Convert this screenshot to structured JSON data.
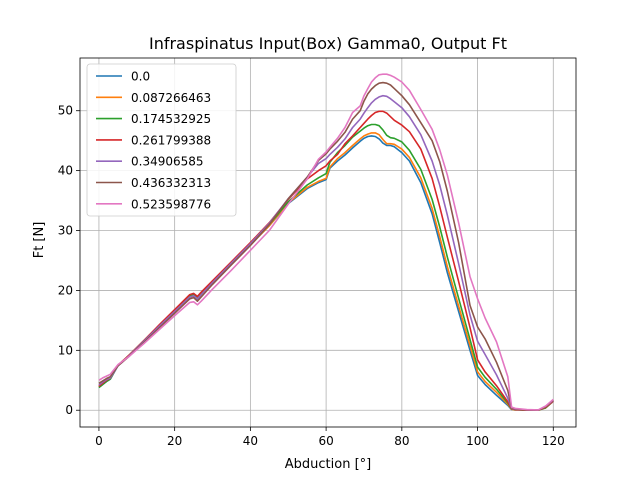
{
  "chart_data": {
    "type": "line",
    "title": "Infraspinatus Input(Box) Gamma0, Output Ft",
    "xlabel": "Abduction [°]",
    "ylabel": "Ft [N]",
    "xlim": [
      -5,
      126
    ],
    "ylim": [
      -2.8,
      58.8
    ],
    "xticks": [
      0,
      20,
      40,
      60,
      80,
      100,
      120
    ],
    "yticks": [
      0,
      10,
      20,
      30,
      40,
      50
    ],
    "grid": true,
    "legend_position": "top-left",
    "x": [
      0,
      1,
      2,
      3,
      5,
      8,
      12,
      16,
      20,
      24,
      25,
      26,
      27,
      30,
      35,
      40,
      45,
      50,
      55,
      58,
      60,
      61,
      63,
      65,
      67,
      69,
      70,
      71,
      72,
      73,
      74,
      75,
      76,
      77,
      78,
      80,
      82,
      85,
      88,
      90,
      92,
      95,
      98,
      100,
      102,
      105,
      108,
      109,
      110,
      113,
      116,
      118,
      120
    ],
    "series": [
      {
        "name": "0.0",
        "color": "#1f77b4",
        "values": [
          3.8,
          4.3,
          4.8,
          5.2,
          7.4,
          9.1,
          11.6,
          14.1,
          16.5,
          18.9,
          19.1,
          18.5,
          19.3,
          21.2,
          24.4,
          27.6,
          30.8,
          34.5,
          37.0,
          38.0,
          38.5,
          40.4,
          41.6,
          42.6,
          43.8,
          44.9,
          45.4,
          45.7,
          45.8,
          45.7,
          45.3,
          44.6,
          44.2,
          44.2,
          44.0,
          43.0,
          41.6,
          38.0,
          32.8,
          28.0,
          23.0,
          16.5,
          10.0,
          5.8,
          4.3,
          2.5,
          0.8,
          0.1,
          0.05,
          0.0,
          0.0,
          0.4,
          1.5
        ]
      },
      {
        "name": "0.087266463",
        "color": "#ff7f0e",
        "values": [
          3.9,
          4.4,
          4.9,
          5.3,
          7.5,
          9.2,
          11.6,
          14.1,
          16.5,
          18.9,
          19.1,
          18.6,
          19.3,
          21.2,
          24.4,
          27.6,
          30.8,
          34.6,
          37.2,
          38.2,
          38.7,
          40.6,
          42.0,
          43.0,
          44.2,
          45.3,
          45.8,
          46.1,
          46.3,
          46.3,
          46.0,
          45.2,
          44.5,
          44.5,
          44.4,
          43.6,
          42.2,
          38.8,
          33.7,
          29.0,
          24.0,
          17.4,
          10.8,
          6.4,
          4.8,
          3.0,
          1.0,
          0.15,
          0.05,
          0.0,
          0.0,
          0.4,
          1.5
        ]
      },
      {
        "name": "0.174532925",
        "color": "#2ca02c",
        "values": [
          3.8,
          4.3,
          4.8,
          5.2,
          7.5,
          9.2,
          11.7,
          14.2,
          16.7,
          19.1,
          19.3,
          18.8,
          19.5,
          21.4,
          24.6,
          27.8,
          31.0,
          34.8,
          37.6,
          38.8,
          39.5,
          41.4,
          43.0,
          44.2,
          45.6,
          46.6,
          47.1,
          47.5,
          47.7,
          47.7,
          47.5,
          46.8,
          45.9,
          45.5,
          45.4,
          44.8,
          43.4,
          40.2,
          35.2,
          30.6,
          25.6,
          18.7,
          11.8,
          7.2,
          5.5,
          3.5,
          1.2,
          0.2,
          0.1,
          0.0,
          0.0,
          0.4,
          1.5
        ]
      },
      {
        "name": "0.261799388",
        "color": "#d62728",
        "values": [
          4.0,
          4.5,
          5.0,
          5.4,
          7.5,
          9.2,
          11.7,
          14.3,
          16.8,
          19.3,
          19.5,
          19.0,
          19.7,
          21.6,
          24.8,
          28.0,
          31.3,
          35.2,
          38.6,
          40.0,
          40.8,
          41.6,
          42.7,
          44.5,
          45.8,
          47.2,
          47.9,
          48.6,
          49.2,
          49.7,
          49.9,
          49.9,
          49.6,
          49.0,
          48.4,
          47.6,
          46.5,
          43.6,
          38.7,
          34.0,
          28.9,
          21.5,
          13.8,
          8.4,
          6.4,
          4.1,
          1.4,
          0.25,
          0.1,
          0.0,
          0.0,
          0.5,
          1.5
        ]
      },
      {
        "name": "0.34906585",
        "color": "#9467bd",
        "values": [
          4.2,
          4.7,
          5.1,
          5.4,
          7.4,
          9.1,
          11.6,
          14.1,
          16.5,
          18.9,
          19.1,
          18.6,
          19.3,
          21.3,
          24.6,
          27.8,
          31.2,
          35.3,
          38.9,
          41.2,
          42.0,
          42.7,
          43.9,
          45.3,
          47.2,
          48.6,
          49.6,
          50.5,
          51.3,
          51.9,
          52.3,
          52.5,
          52.4,
          52.0,
          51.5,
          50.5,
          49.0,
          46.0,
          41.6,
          37.6,
          32.6,
          24.5,
          15.9,
          11.5,
          9.3,
          5.9,
          2.0,
          0.3,
          0.15,
          0.05,
          0.0,
          0.6,
          1.6
        ]
      },
      {
        "name": "0.436332313",
        "color": "#8c564b",
        "values": [
          4.5,
          4.9,
          5.3,
          5.6,
          7.4,
          9.0,
          11.4,
          13.8,
          16.2,
          18.6,
          18.8,
          18.2,
          18.9,
          21.0,
          24.3,
          27.5,
          31.0,
          35.3,
          38.9,
          41.7,
          42.8,
          43.6,
          44.9,
          46.4,
          48.6,
          50.0,
          51.6,
          52.8,
          53.6,
          54.2,
          54.6,
          54.7,
          54.6,
          54.3,
          53.7,
          52.5,
          51.0,
          48.0,
          45.0,
          41.5,
          36.6,
          28.0,
          17.5,
          13.9,
          11.9,
          8.0,
          3.3,
          0.4,
          0.2,
          0.05,
          0.0,
          0.6,
          1.7
        ]
      },
      {
        "name": "0.523598776",
        "color": "#e377c2",
        "values": [
          5.0,
          5.4,
          5.7,
          6.0,
          7.6,
          9.0,
          11.2,
          13.5,
          15.8,
          18.0,
          18.1,
          17.6,
          18.2,
          20.2,
          23.4,
          26.7,
          30.0,
          34.4,
          38.6,
          41.9,
          43.1,
          43.9,
          45.4,
          47.2,
          49.7,
          50.8,
          52.5,
          53.7,
          54.8,
          55.5,
          56.0,
          56.1,
          56.1,
          55.9,
          55.6,
          54.8,
          53.4,
          50.2,
          46.9,
          43.5,
          39.3,
          31.3,
          22.3,
          18.6,
          15.4,
          11.4,
          5.6,
          0.5,
          0.3,
          0.1,
          0.05,
          0.7,
          1.8
        ]
      }
    ]
  }
}
